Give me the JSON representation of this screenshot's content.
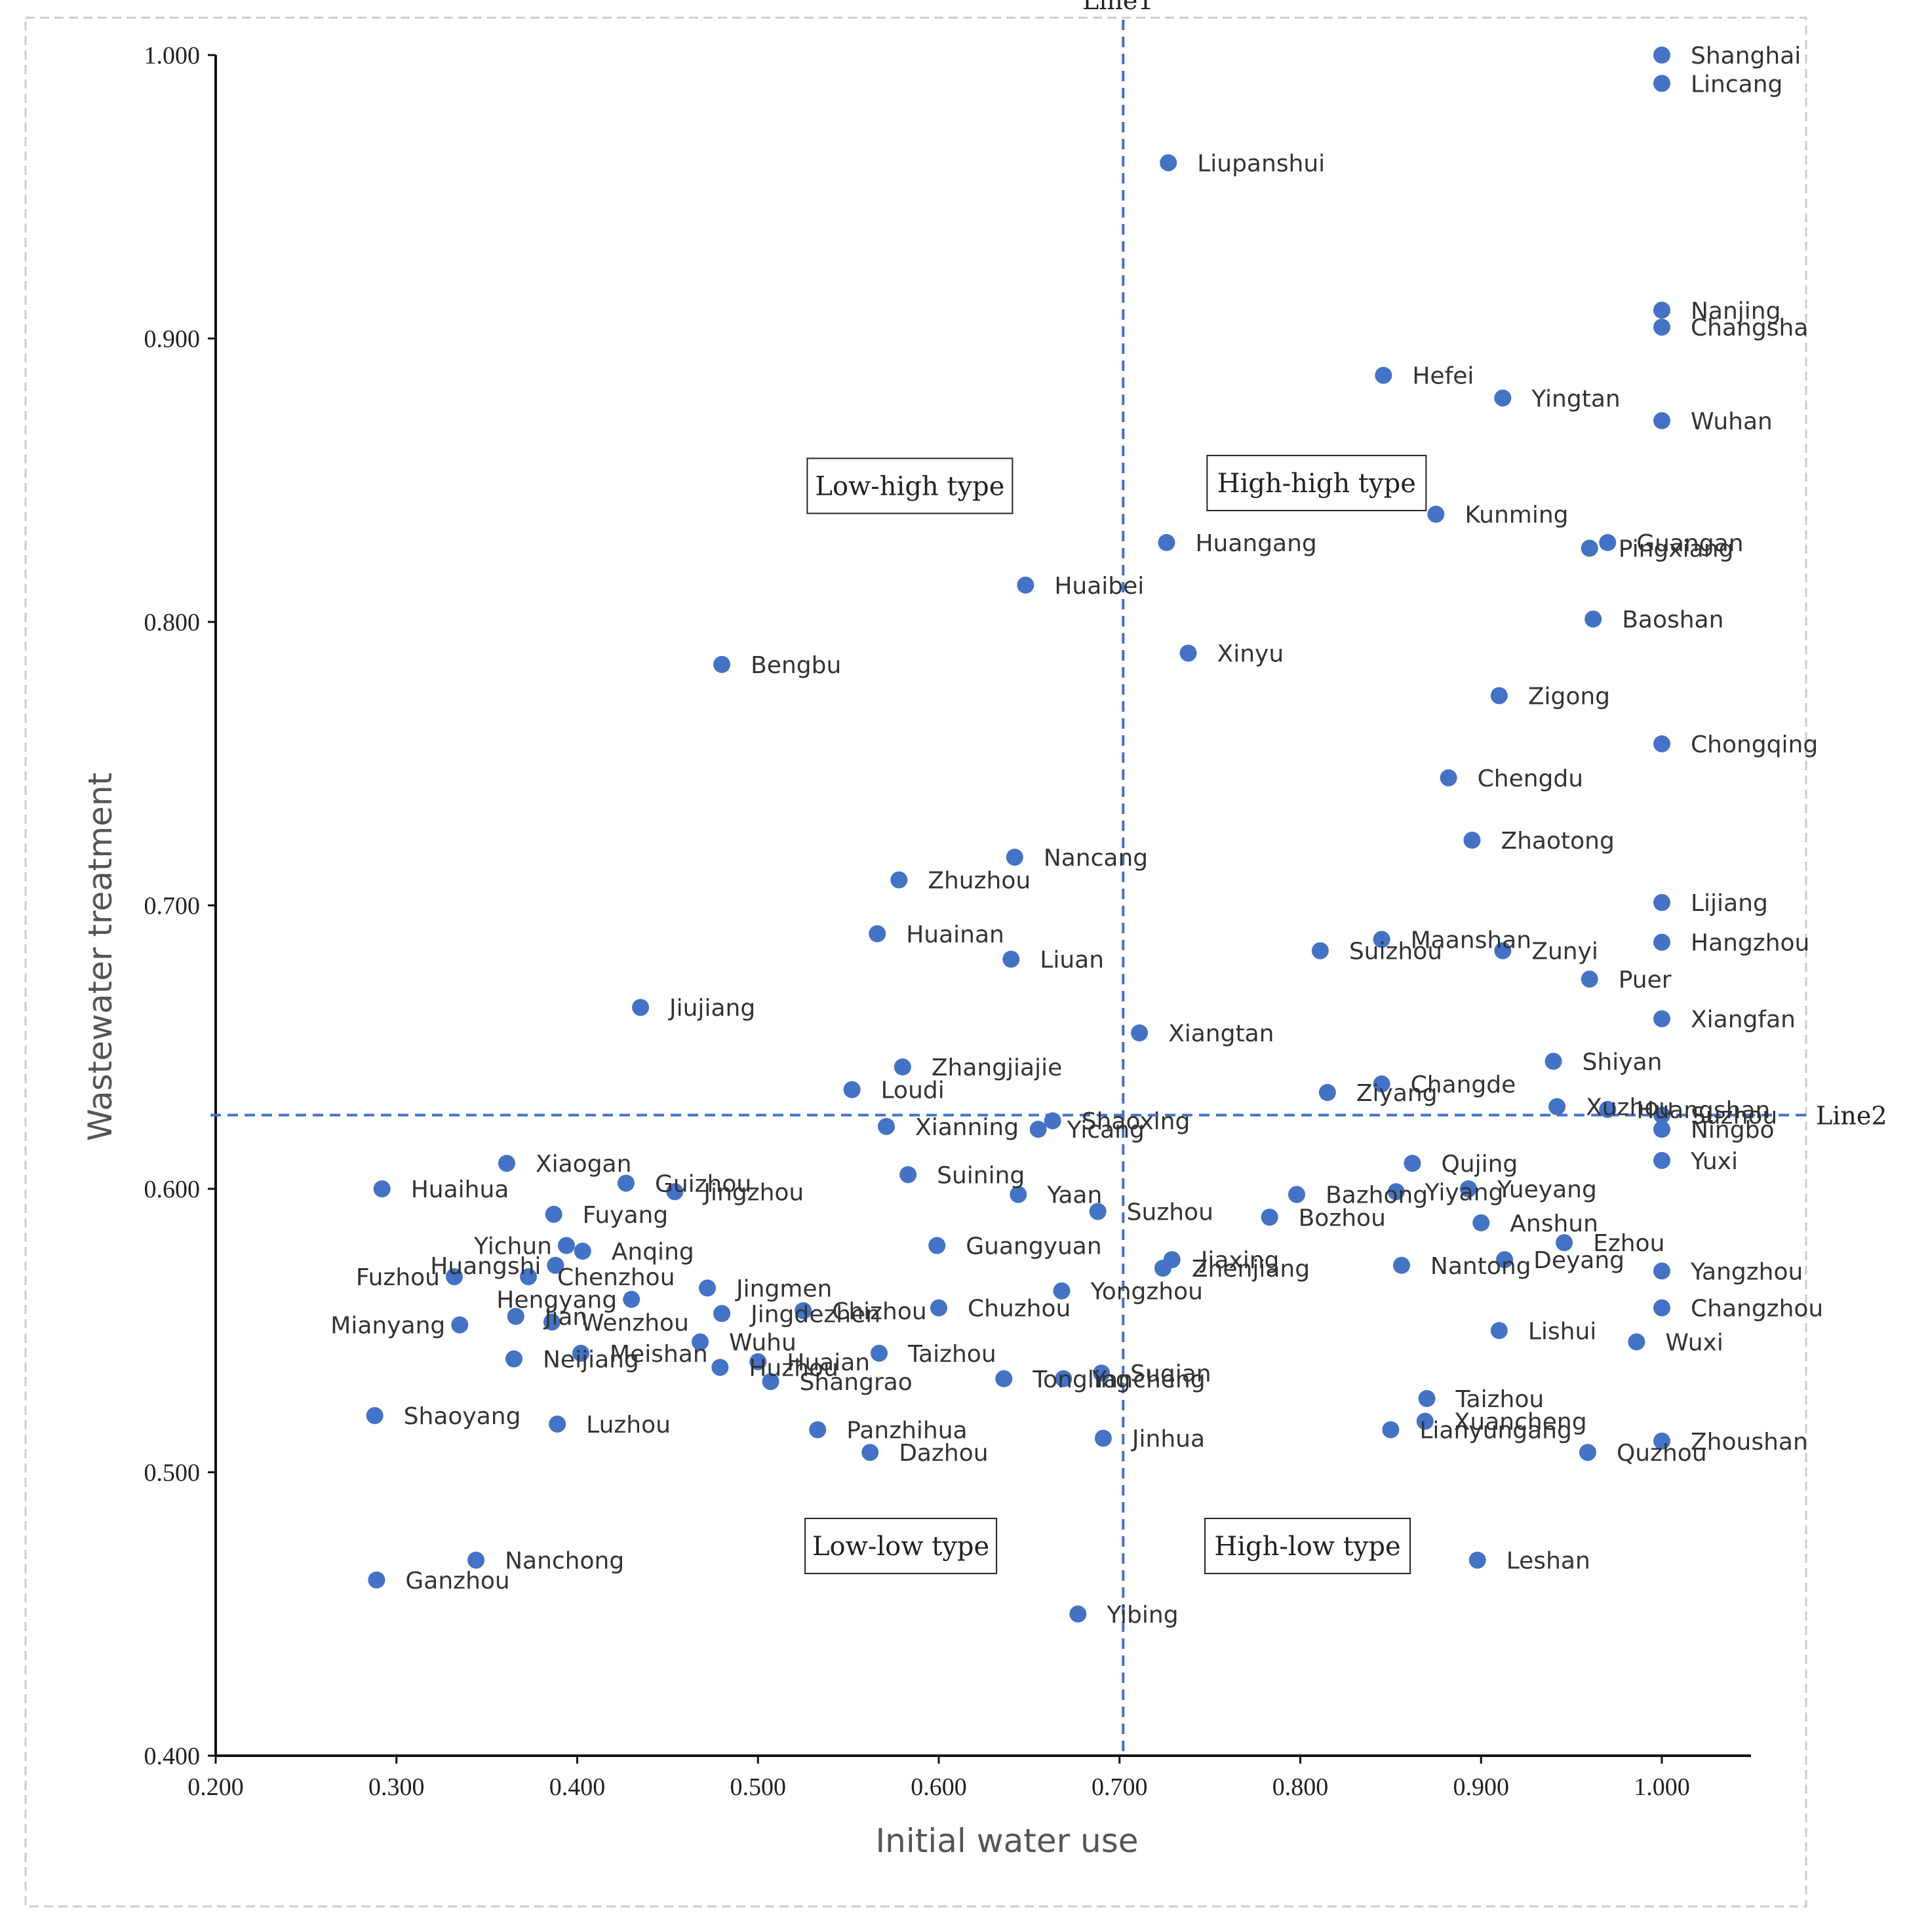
{
  "chart_data": {
    "type": "scatter",
    "title": "",
    "xlabel": "Initial water use",
    "ylabel": "Wastewater treatment",
    "xlim": [
      0.2,
      1.05
    ],
    "ylim": [
      0.4,
      1.0
    ],
    "x_ticks": [
      "0.200",
      "0.300",
      "0.400",
      "0.500",
      "0.600",
      "0.700",
      "0.800",
      "0.900",
      "1.000"
    ],
    "y_ticks": [
      "0.400",
      "0.500",
      "0.600",
      "0.700",
      "0.800",
      "0.900",
      "1.000"
    ],
    "reference_lines": [
      {
        "name": "Line1",
        "axis": "x",
        "value": 0.702
      },
      {
        "name": "Line2",
        "axis": "y",
        "value": 0.626
      }
    ],
    "quadrant_labels": [
      {
        "text": "Low-high type",
        "x": 0.584,
        "y": 0.848
      },
      {
        "text": "High-high type",
        "x": 0.809,
        "y": 0.849
      },
      {
        "text": "Low-low type",
        "x": 0.579,
        "y": 0.474
      },
      {
        "text": "High-low type",
        "x": 0.804,
        "y": 0.474
      }
    ],
    "marker_color": "#4472C4",
    "points": [
      {
        "name": "Shanghai",
        "x": 1.0,
        "y": 1.0
      },
      {
        "name": "Lincang",
        "x": 1.0,
        "y": 0.99
      },
      {
        "name": "Liupanshui",
        "x": 0.727,
        "y": 0.962
      },
      {
        "name": "Nanjing",
        "x": 1.0,
        "y": 0.91
      },
      {
        "name": "Changsha",
        "x": 1.0,
        "y": 0.904
      },
      {
        "name": "Hefei",
        "x": 0.846,
        "y": 0.887
      },
      {
        "name": "Yingtan",
        "x": 0.912,
        "y": 0.879
      },
      {
        "name": "Wuhan",
        "x": 1.0,
        "y": 0.871
      },
      {
        "name": "Kunming",
        "x": 0.875,
        "y": 0.838
      },
      {
        "name": "Huangang",
        "x": 0.726,
        "y": 0.828
      },
      {
        "name": "Guangan",
        "x": 0.97,
        "y": 0.828
      },
      {
        "name": "Pingxiang",
        "x": 0.96,
        "y": 0.826
      },
      {
        "name": "Huaibei",
        "x": 0.648,
        "y": 0.813
      },
      {
        "name": "Baoshan",
        "x": 0.962,
        "y": 0.801
      },
      {
        "name": "Xinyu",
        "x": 0.738,
        "y": 0.789
      },
      {
        "name": "Bengbu",
        "x": 0.48,
        "y": 0.785
      },
      {
        "name": "Zigong",
        "x": 0.91,
        "y": 0.774
      },
      {
        "name": "Chongqing",
        "x": 1.0,
        "y": 0.757
      },
      {
        "name": "Chengdu",
        "x": 0.882,
        "y": 0.745
      },
      {
        "name": "Zhaotong",
        "x": 0.895,
        "y": 0.723
      },
      {
        "name": "Nancang",
        "x": 0.642,
        "y": 0.717
      },
      {
        "name": "Zhuzhou",
        "x": 0.578,
        "y": 0.709
      },
      {
        "name": "Lijiang",
        "x": 1.0,
        "y": 0.701
      },
      {
        "name": "Huainan",
        "x": 0.566,
        "y": 0.69
      },
      {
        "name": "Maanshan",
        "x": 0.845,
        "y": 0.688
      },
      {
        "name": "Hangzhou",
        "x": 1.0,
        "y": 0.687
      },
      {
        "name": "Suizhou",
        "x": 0.811,
        "y": 0.684
      },
      {
        "name": "Zunyi",
        "x": 0.912,
        "y": 0.684
      },
      {
        "name": "Liuan",
        "x": 0.64,
        "y": 0.681
      },
      {
        "name": "Puer",
        "x": 0.96,
        "y": 0.674
      },
      {
        "name": "Jiujiang",
        "x": 0.435,
        "y": 0.664
      },
      {
        "name": "Xiangfan",
        "x": 1.0,
        "y": 0.66
      },
      {
        "name": "Xiangtan",
        "x": 0.711,
        "y": 0.655
      },
      {
        "name": "Shiyan",
        "x": 0.94,
        "y": 0.645
      },
      {
        "name": "Zhangjiajie",
        "x": 0.58,
        "y": 0.643
      },
      {
        "name": "Changde",
        "x": 0.845,
        "y": 0.637
      },
      {
        "name": "Loudi",
        "x": 0.552,
        "y": 0.635
      },
      {
        "name": "Ziyang",
        "x": 0.815,
        "y": 0.634
      },
      {
        "name": "Xuzhou",
        "x": 0.942,
        "y": 0.629
      },
      {
        "name": "Huangshan",
        "x": 0.97,
        "y": 0.628
      },
      {
        "name": "Suzhou",
        "x": 1.0,
        "y": 0.626
      },
      {
        "name": "Shaoxing",
        "x": 0.663,
        "y": 0.624
      },
      {
        "name": "Xianning",
        "x": 0.571,
        "y": 0.622
      },
      {
        "name": "Ningbo",
        "x": 1.0,
        "y": 0.621
      },
      {
        "name": "Yicang",
        "x": 0.655,
        "y": 0.621
      },
      {
        "name": "Yuxi",
        "x": 1.0,
        "y": 0.61
      },
      {
        "name": "Xiaogan",
        "x": 0.361,
        "y": 0.609
      },
      {
        "name": "Qujing",
        "x": 0.862,
        "y": 0.609
      },
      {
        "name": "Suining",
        "x": 0.583,
        "y": 0.605
      },
      {
        "name": "Guizhou",
        "x": 0.427,
        "y": 0.602
      },
      {
        "name": "Huaihua",
        "x": 0.292,
        "y": 0.6
      },
      {
        "name": "Yueyang",
        "x": 0.893,
        "y": 0.6
      },
      {
        "name": "Jingzhou",
        "x": 0.454,
        "y": 0.599
      },
      {
        "name": "Yiyang",
        "x": 0.853,
        "y": 0.599
      },
      {
        "name": "Yaan",
        "x": 0.644,
        "y": 0.598
      },
      {
        "name": "Bazhong",
        "x": 0.798,
        "y": 0.598
      },
      {
        "name": "Suzhou",
        "x": 0.688,
        "y": 0.592
      },
      {
        "name": "Fuyang",
        "x": 0.387,
        "y": 0.591
      },
      {
        "name": "Bozhou",
        "x": 0.783,
        "y": 0.59
      },
      {
        "name": "Anshun",
        "x": 0.9,
        "y": 0.588
      },
      {
        "name": "Ezhou",
        "x": 0.946,
        "y": 0.581
      },
      {
        "name": "Yichun",
        "x": 0.394,
        "y": 0.58
      },
      {
        "name": "Guangyuan",
        "x": 0.599,
        "y": 0.58
      },
      {
        "name": "Anqing",
        "x": 0.403,
        "y": 0.578
      },
      {
        "name": "Jiaxing",
        "x": 0.729,
        "y": 0.575
      },
      {
        "name": "Deyang",
        "x": 0.913,
        "y": 0.575
      },
      {
        "name": "Huangshi",
        "x": 0.388,
        "y": 0.573
      },
      {
        "name": "Nantong",
        "x": 0.856,
        "y": 0.573
      },
      {
        "name": "Zhenjiang",
        "x": 0.724,
        "y": 0.572
      },
      {
        "name": "Yangzhou",
        "x": 1.0,
        "y": 0.571
      },
      {
        "name": "Fuzhou",
        "x": 0.332,
        "y": 0.569
      },
      {
        "name": "Chenzhou",
        "x": 0.373,
        "y": 0.569
      },
      {
        "name": "Jingmen",
        "x": 0.472,
        "y": 0.565
      },
      {
        "name": "Yongzhou",
        "x": 0.668,
        "y": 0.564
      },
      {
        "name": "Hengyang",
        "x": 0.43,
        "y": 0.561
      },
      {
        "name": "Chuzhou",
        "x": 0.6,
        "y": 0.558
      },
      {
        "name": "Changzhou",
        "x": 1.0,
        "y": 0.558
      },
      {
        "name": "Chizhou",
        "x": 0.525,
        "y": 0.557
      },
      {
        "name": "Jingdezhen",
        "x": 0.48,
        "y": 0.556
      },
      {
        "name": "Jian",
        "x": 0.366,
        "y": 0.555
      },
      {
        "name": "Wenzhou",
        "x": 0.386,
        "y": 0.553
      },
      {
        "name": "Mianyang",
        "x": 0.335,
        "y": 0.552
      },
      {
        "name": "Lishui",
        "x": 0.91,
        "y": 0.55
      },
      {
        "name": "Wuxi",
        "x": 0.986,
        "y": 0.546
      },
      {
        "name": "Wuhu",
        "x": 0.468,
        "y": 0.546
      },
      {
        "name": "Meishan",
        "x": 0.402,
        "y": 0.542
      },
      {
        "name": "Taizhou",
        "x": 0.567,
        "y": 0.542
      },
      {
        "name": "Neijiang",
        "x": 0.365,
        "y": 0.54
      },
      {
        "name": "Huaian",
        "x": 0.5,
        "y": 0.539
      },
      {
        "name": "Huzhou",
        "x": 0.479,
        "y": 0.537
      },
      {
        "name": "Suqian",
        "x": 0.69,
        "y": 0.535
      },
      {
        "name": "Tongling",
        "x": 0.636,
        "y": 0.533
      },
      {
        "name": "Yancheng",
        "x": 0.669,
        "y": 0.533
      },
      {
        "name": "Shangrao",
        "x": 0.507,
        "y": 0.532
      },
      {
        "name": "Taizhou",
        "x": 0.87,
        "y": 0.526
      },
      {
        "name": "Shaoyang",
        "x": 0.288,
        "y": 0.52
      },
      {
        "name": "Xuancheng",
        "x": 0.869,
        "y": 0.518
      },
      {
        "name": "Luzhou",
        "x": 0.389,
        "y": 0.517
      },
      {
        "name": "Panzhihua",
        "x": 0.533,
        "y": 0.515
      },
      {
        "name": "Lianyungang",
        "x": 0.85,
        "y": 0.515
      },
      {
        "name": "Jinhua",
        "x": 0.691,
        "y": 0.512
      },
      {
        "name": "Zhoushan",
        "x": 1.0,
        "y": 0.511
      },
      {
        "name": "Dazhou",
        "x": 0.562,
        "y": 0.507
      },
      {
        "name": "Quzhou",
        "x": 0.959,
        "y": 0.507
      },
      {
        "name": "Nanchong",
        "x": 0.344,
        "y": 0.469
      },
      {
        "name": "Leshan",
        "x": 0.898,
        "y": 0.469
      },
      {
        "name": "Ganzhou",
        "x": 0.289,
        "y": 0.462
      },
      {
        "name": "Yibing",
        "x": 0.677,
        "y": 0.45
      }
    ]
  }
}
